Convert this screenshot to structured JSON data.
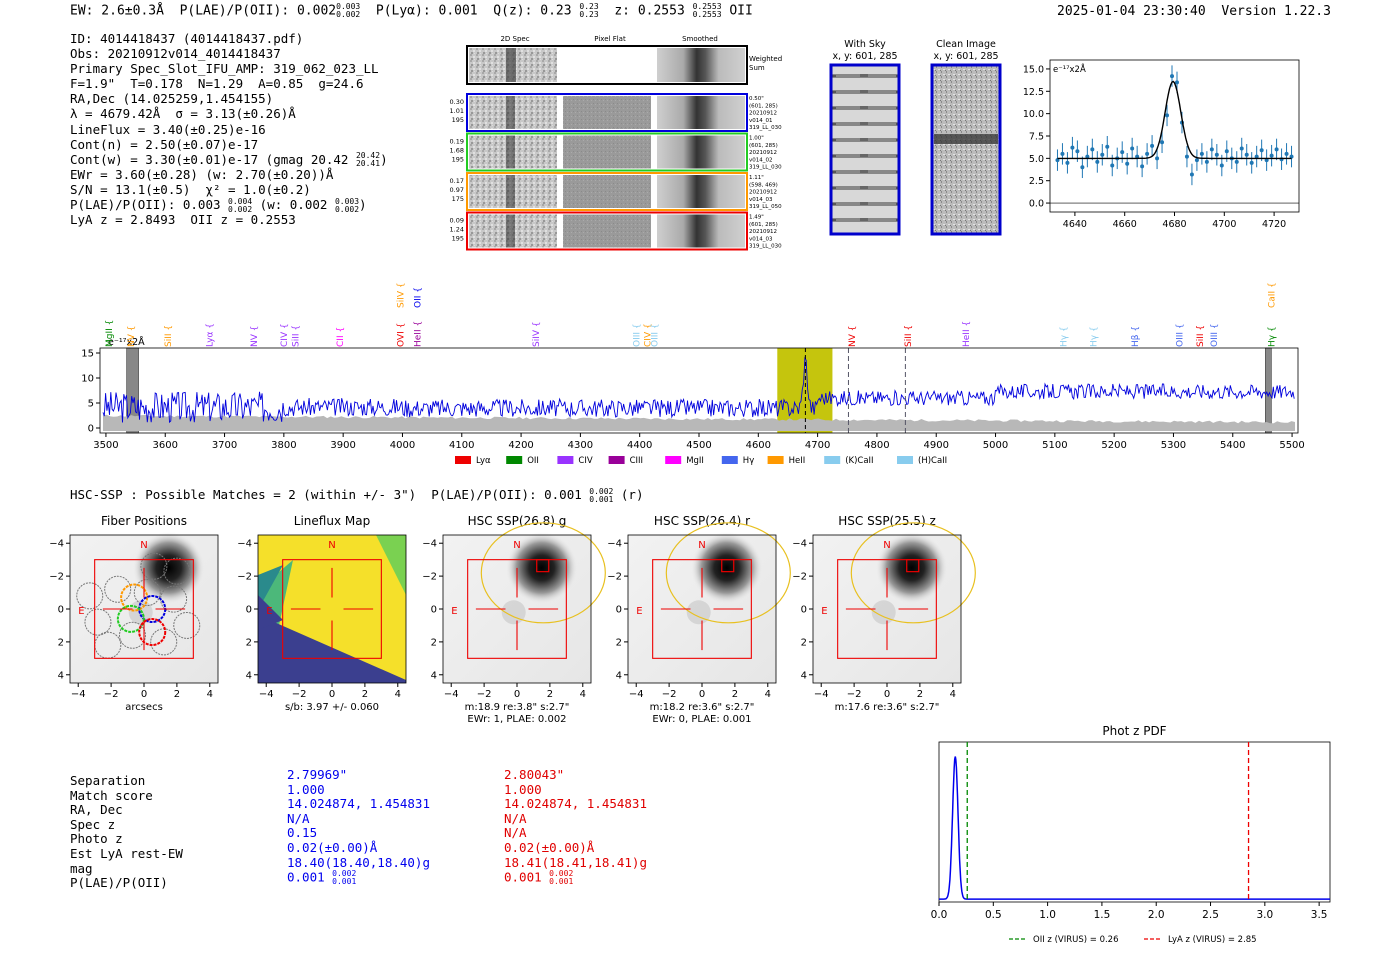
{
  "header": {
    "ew": "EW: 2.6±0.3Å",
    "plae_label": "P(LAE)/P(OII):",
    "plae_value": "0.002",
    "plae_hi": "0.003",
    "plae_lo": "0.002",
    "plya_label": "P(Lyα):",
    "plya_value": "0.001",
    "qz_label": "Q(z):",
    "qz_value": "0.23",
    "qz_hi": "0.23",
    "qz_lo": "0.23",
    "z_label": "z:",
    "z_value": "0.2553",
    "z_hi": "0.2553",
    "z_lo": "0.2553",
    "z_line": "OII",
    "timestamp": "2025-01-04 23:30:40",
    "version": "Version 1.22.3"
  },
  "info": {
    "id": "ID: 4014418437 (4014418437.pdf)",
    "obs": "Obs: 20210912v014_4014418437",
    "primary": "Primary Spec_Slot_IFU_AMP: 319_062_023_LL",
    "params": "F=1.9\"  T=0.178  N=1.29  A=0.85  g=24.6",
    "radec": "RA,Dec (14.025259,1.454155)",
    "lambda": "λ = 4679.42Å  σ = 3.13(±0.26)Å",
    "lineflux": "LineFlux = 3.40(±0.25)e-16",
    "contn": "Cont(n) = 2.50(±0.07)e-17",
    "contw": "Cont(w) = 3.30(±0.01)e-17 (gmag 20.42",
    "contw_hi": "20.42",
    "contw_lo": "20.41",
    "ewr": "EWr = 3.60(±0.28) (w: 2.70(±0.20))Å",
    "sn": "S/N = 13.1(±0.5)  χ² = 1.0(±0.2)",
    "plae": "P(LAE)/P(OII): 0.003",
    "plae_hi": "0.004",
    "plae_lo": "0.002",
    "plae_w": "(w: 0.002",
    "plae_w_hi": "0.003",
    "plae_w_lo": "0.002",
    "lyaz": "LyA z = 2.8493  OII z = 0.2553"
  },
  "cutouts": {
    "headers": [
      "2D Spec",
      "Pixel Flat",
      "Smoothed"
    ],
    "weighted_sum": "Weighted Sum",
    "rows": [
      {
        "left": [
          "0.30",
          "1.01",
          "195"
        ],
        "right": [
          "0.50\"",
          "(601, 285)",
          "20210912",
          "v014_01",
          "319_LL_030"
        ],
        "color": "#0000dd"
      },
      {
        "left": [
          "0.19",
          "1.68",
          "195"
        ],
        "right": [
          "1.00\"",
          "(601, 285)",
          "20210912",
          "v014_02",
          "319_LL_030"
        ],
        "color": "#22cc22"
      },
      {
        "left": [
          "0.17",
          "0.97",
          "175"
        ],
        "right": [
          "1.11\"",
          "(598, 469)",
          "20210912",
          "v014_03",
          "319_LL_050"
        ],
        "color": "#ff9900"
      },
      {
        "left": [
          "0.09",
          "1.24",
          "195"
        ],
        "right": [
          "1.49\"",
          "(601, 285)",
          "20210912",
          "v014_03",
          "319_LL_030"
        ],
        "color": "#ee0000"
      }
    ],
    "with_sky": "With Sky",
    "with_sky_xy": "x, y: 601, 285",
    "clean": "Clean Image",
    "clean_xy": "x, y: 601, 285"
  },
  "lines": [
    {
      "name": "MgII",
      "x": 3505,
      "color": "#008800",
      "row": 2
    },
    {
      "name": "NV",
      "x": 3542,
      "color": "#ff9900",
      "row": 2
    },
    {
      "name": "SiII",
      "x": 3605,
      "color": "#ff9900",
      "row": 2
    },
    {
      "name": "Lyα",
      "x": 3675,
      "color": "#9933ff",
      "row": 2
    },
    {
      "name": "NV",
      "x": 3750,
      "color": "#9933ff",
      "row": 2
    },
    {
      "name": "CIV",
      "x": 3800,
      "color": "#9933ff",
      "row": 2
    },
    {
      "name": "SiII",
      "x": 3820,
      "color": "#9933ff",
      "row": 2
    },
    {
      "name": "CII",
      "x": 3895,
      "color": "#ff00ff",
      "row": 2
    },
    {
      "name": "OVI",
      "x": 3997,
      "color": "#ee0000",
      "row": 2
    },
    {
      "name": "HeII",
      "x": 4025,
      "color": "#990099",
      "row": 2
    },
    {
      "name": "SiIV",
      "x": 3997,
      "color": "#ff9900",
      "row": 1
    },
    {
      "name": "OII",
      "x": 4025,
      "color": "#0000ee",
      "row": 1
    },
    {
      "name": "SiIV",
      "x": 4225,
      "color": "#9933ff",
      "row": 2
    },
    {
      "name": "OIII",
      "x": 4395,
      "color": "#88ccee",
      "row": 2
    },
    {
      "name": "CIV",
      "x": 4413,
      "color": "#ff9900",
      "row": 2
    },
    {
      "name": "OIII",
      "x": 4425,
      "color": "#88ccee",
      "row": 2
    },
    {
      "name": "NV",
      "x": 4758,
      "color": "#ee0000",
      "row": 2
    },
    {
      "name": "SiII",
      "x": 4852,
      "color": "#ee0000",
      "row": 2
    },
    {
      "name": "HeII",
      "x": 4950,
      "color": "#9933ff",
      "row": 2
    },
    {
      "name": "Hγ",
      "x": 5115,
      "color": "#88ccee",
      "row": 2
    },
    {
      "name": "Hγ",
      "x": 5165,
      "color": "#88ccee",
      "row": 2
    },
    {
      "name": "Hβ",
      "x": 5235,
      "color": "#4466ee",
      "row": 2
    },
    {
      "name": "OIII",
      "x": 5310,
      "color": "#4466ee",
      "row": 2
    },
    {
      "name": "SiII",
      "x": 5345,
      "color": "#ee0000",
      "row": 2
    },
    {
      "name": "OIII",
      "x": 5368,
      "color": "#4466ee",
      "row": 2
    },
    {
      "name": "Hγ",
      "x": 5465,
      "color": "#008800",
      "row": 2
    },
    {
      "name": "CaII",
      "x": 5465,
      "color": "#ff9900",
      "row": 1
    }
  ],
  "legend": [
    {
      "label": "Lyα",
      "color": "#ee0000"
    },
    {
      "label": "OII",
      "color": "#008800"
    },
    {
      "label": "CIV",
      "color": "#9933ff"
    },
    {
      "label": "CIII",
      "color": "#990099"
    },
    {
      "label": "MgII",
      "color": "#ff00ff"
    },
    {
      "label": "Hγ",
      "color": "#4466ee"
    },
    {
      "label": "HeII",
      "color": "#ff9900"
    },
    {
      "label": "(K)CaII",
      "color": "#88ccee"
    },
    {
      "label": "(H)CaII",
      "color": "#88ccee"
    }
  ],
  "hsc": {
    "summary": "HSC-SSP : Possible Matches = 2 (within +/- 3\")  P(LAE)/P(OII): 0.001",
    "summary_hi": "0.002",
    "summary_lo": "0.001",
    "summary_band": "(r)",
    "panels": [
      {
        "title": "Fiber Positions",
        "xlabel": "arcsecs",
        "sub": ""
      },
      {
        "title": "Lineflux Map",
        "xlabel": "s/b: 3.97 +/- 0.060",
        "sub": ""
      },
      {
        "title": "HSC SSP(26.8) g",
        "xlabel": "m:18.9  re:3.8\"  s:2.7\"",
        "sub": "EWr: 1, PLAE: 0.002"
      },
      {
        "title": "HSC SSP(26.4) r",
        "xlabel": "m:18.2  re:3.6\"  s:2.7\"",
        "sub": "EWr: 0, PLAE: 0.001"
      },
      {
        "title": "HSC SSP(25.5) z",
        "xlabel": "m:17.6  re:3.6\"  s:2.7\"",
        "sub": ""
      }
    ],
    "ticks": [
      "−4",
      "−2",
      "0",
      "2",
      "4"
    ],
    "compass_n": "N",
    "compass_e": "E"
  },
  "matches": {
    "labels": [
      "Separation",
      "Match score",
      "RA, Dec",
      "Spec z",
      "Photo z",
      "Est LyA rest-EW",
      "mag",
      "P(LAE)/P(OII)"
    ],
    "col1": [
      "2.79969\"",
      "1.000",
      "14.024874, 1.454831",
      "N/A",
      "0.15",
      "0.02(±0.00)Å",
      "18.40(18.40,18.40)g",
      "0.001"
    ],
    "col1_frac": [
      "0.002",
      "0.001"
    ],
    "col2": [
      "2.80043\"",
      "1.000",
      "14.024874, 1.454831",
      "N/A",
      "N/A",
      "0.02(±0.00)Å",
      "18.41(18.41,18.41)g",
      "0.001"
    ],
    "col2_frac": [
      "0.002",
      "0.001"
    ]
  },
  "chart_data": [
    {
      "type": "line",
      "title": "",
      "ylabel": "e⁻¹⁷x2Å",
      "xlim": [
        4630,
        4730
      ],
      "ylim": [
        -1,
        16
      ],
      "xticks": [
        4640,
        4660,
        4680,
        4700,
        4720
      ],
      "yticks": [
        0.0,
        2.5,
        5.0,
        7.5,
        10.0,
        12.5,
        15.0
      ],
      "series": [
        {
          "name": "data",
          "color": "#1f77b4",
          "x": [
            4633,
            4635,
            4637,
            4639,
            4641,
            4643,
            4645,
            4647,
            4649,
            4651,
            4653,
            4655,
            4657,
            4659,
            4661,
            4663,
            4665,
            4667,
            4669,
            4671,
            4673,
            4675,
            4677,
            4679,
            4681,
            4683,
            4685,
            4687,
            4689,
            4691,
            4693,
            4695,
            4697,
            4699,
            4701,
            4703,
            4705,
            4707,
            4709,
            4711,
            4713,
            4715,
            4717,
            4719,
            4721,
            4723,
            4725,
            4727
          ],
          "y": [
            4.8,
            5.5,
            4.5,
            6.2,
            5.8,
            4.0,
            5.2,
            6.0,
            4.6,
            5.4,
            6.3,
            4.2,
            5.0,
            5.7,
            4.4,
            6.1,
            5.2,
            4.1,
            5.5,
            6.4,
            5.0,
            6.8,
            9.8,
            14.2,
            13.5,
            9.0,
            5.2,
            3.2,
            4.8,
            5.5,
            4.6,
            6.0,
            5.4,
            4.2,
            5.8,
            5.0,
            4.6,
            6.1,
            5.4,
            4.5,
            5.2,
            5.9,
            4.8,
            5.3,
            6.0,
            4.9,
            5.5,
            5.2
          ],
          "err": 1.2
        },
        {
          "name": "fit",
          "color": "#000000",
          "continuum": 5.0,
          "amplitude": 8.6,
          "center": 4679.4,
          "sigma": 3.13
        }
      ]
    },
    {
      "type": "line",
      "title": "",
      "ylabel": "e⁻¹⁷x2Å",
      "xlim": [
        3490,
        5510
      ],
      "ylim": [
        -1,
        16
      ],
      "xticks": [
        3500,
        3600,
        3700,
        3800,
        3900,
        4000,
        4100,
        4200,
        4300,
        4400,
        4500,
        4600,
        4700,
        4800,
        4900,
        5000,
        5100,
        5200,
        5300,
        5400,
        5500
      ],
      "yticks": [
        0,
        5,
        10,
        15
      ],
      "highlight_range": [
        4632,
        4725
      ],
      "emission_line": 4679.4,
      "dashed_lines": [
        4752,
        4848
      ],
      "masked": [
        [
          3535,
          3555
        ],
        [
          5455,
          5465
        ]
      ],
      "series": [
        {
          "name": "spectrum",
          "color": "#0000dd"
        },
        {
          "name": "noise",
          "color": "#aaaaaa"
        }
      ]
    },
    {
      "type": "line",
      "title": "Phot z PDF",
      "xlim": [
        0.0,
        3.6
      ],
      "ylim": [
        0,
        1.1
      ],
      "xticks": [
        0.0,
        0.5,
        1.0,
        1.5,
        2.0,
        2.5,
        3.0,
        3.5
      ],
      "xtick_labels": [
        "0.0",
        "0.5",
        "1.0",
        "1.5",
        "2.0",
        "2.5",
        "3.0",
        "3.5"
      ],
      "series": [
        {
          "name": "pdf",
          "color": "#0000ee",
          "peak_x": 0.15,
          "peak_y": 1.0,
          "width": 0.025,
          "floor": 0.02
        }
      ],
      "vlines": [
        {
          "name": "OII z (VIRUS) = 0.26",
          "x": 0.26,
          "color": "#008800"
        },
        {
          "name": "LyA z (VIRUS) = 2.85",
          "x": 2.85,
          "color": "#ee0000"
        }
      ]
    }
  ]
}
